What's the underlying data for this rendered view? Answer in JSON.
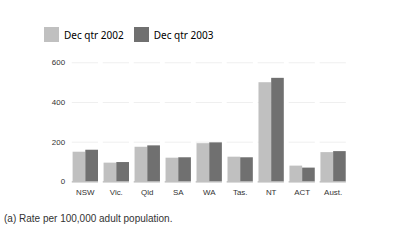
{
  "chart_data": {
    "type": "bar",
    "categories": [
      "NSW",
      "Vic.",
      "Qld",
      "SA",
      "WA",
      "Tas.",
      "NT",
      "ACT",
      "Aust."
    ],
    "series": [
      {
        "name": "Dec qtr 2002",
        "color": "#c0c0c0",
        "values": [
          150,
          95,
          175,
          120,
          193,
          125,
          500,
          80,
          148
        ]
      },
      {
        "name": "Dec qtr 2003",
        "color": "#707070",
        "values": [
          160,
          98,
          182,
          122,
          197,
          122,
          522,
          70,
          153
        ]
      }
    ],
    "ylim": [
      0,
      600
    ],
    "yticks": [
      0,
      200,
      400,
      600
    ],
    "grid": true,
    "legend": "upper left",
    "annotations": [
      "(a)  Rate per 100,000 adult population."
    ]
  }
}
